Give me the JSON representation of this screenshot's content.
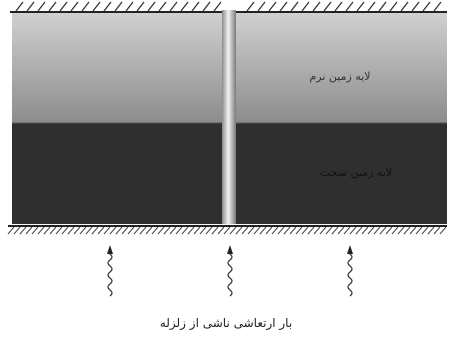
{
  "layers": {
    "top": {
      "label": "لایه زمین نرم",
      "color": "#8f8f8f"
    },
    "bottom": {
      "label": "لایه زمین سخت",
      "color": "#2e2e2e"
    }
  },
  "pile": {
    "color": "#c9c9c9"
  },
  "loads": {
    "count": 3,
    "caption": "بار ارتعاشی ناشی از زلزله"
  }
}
